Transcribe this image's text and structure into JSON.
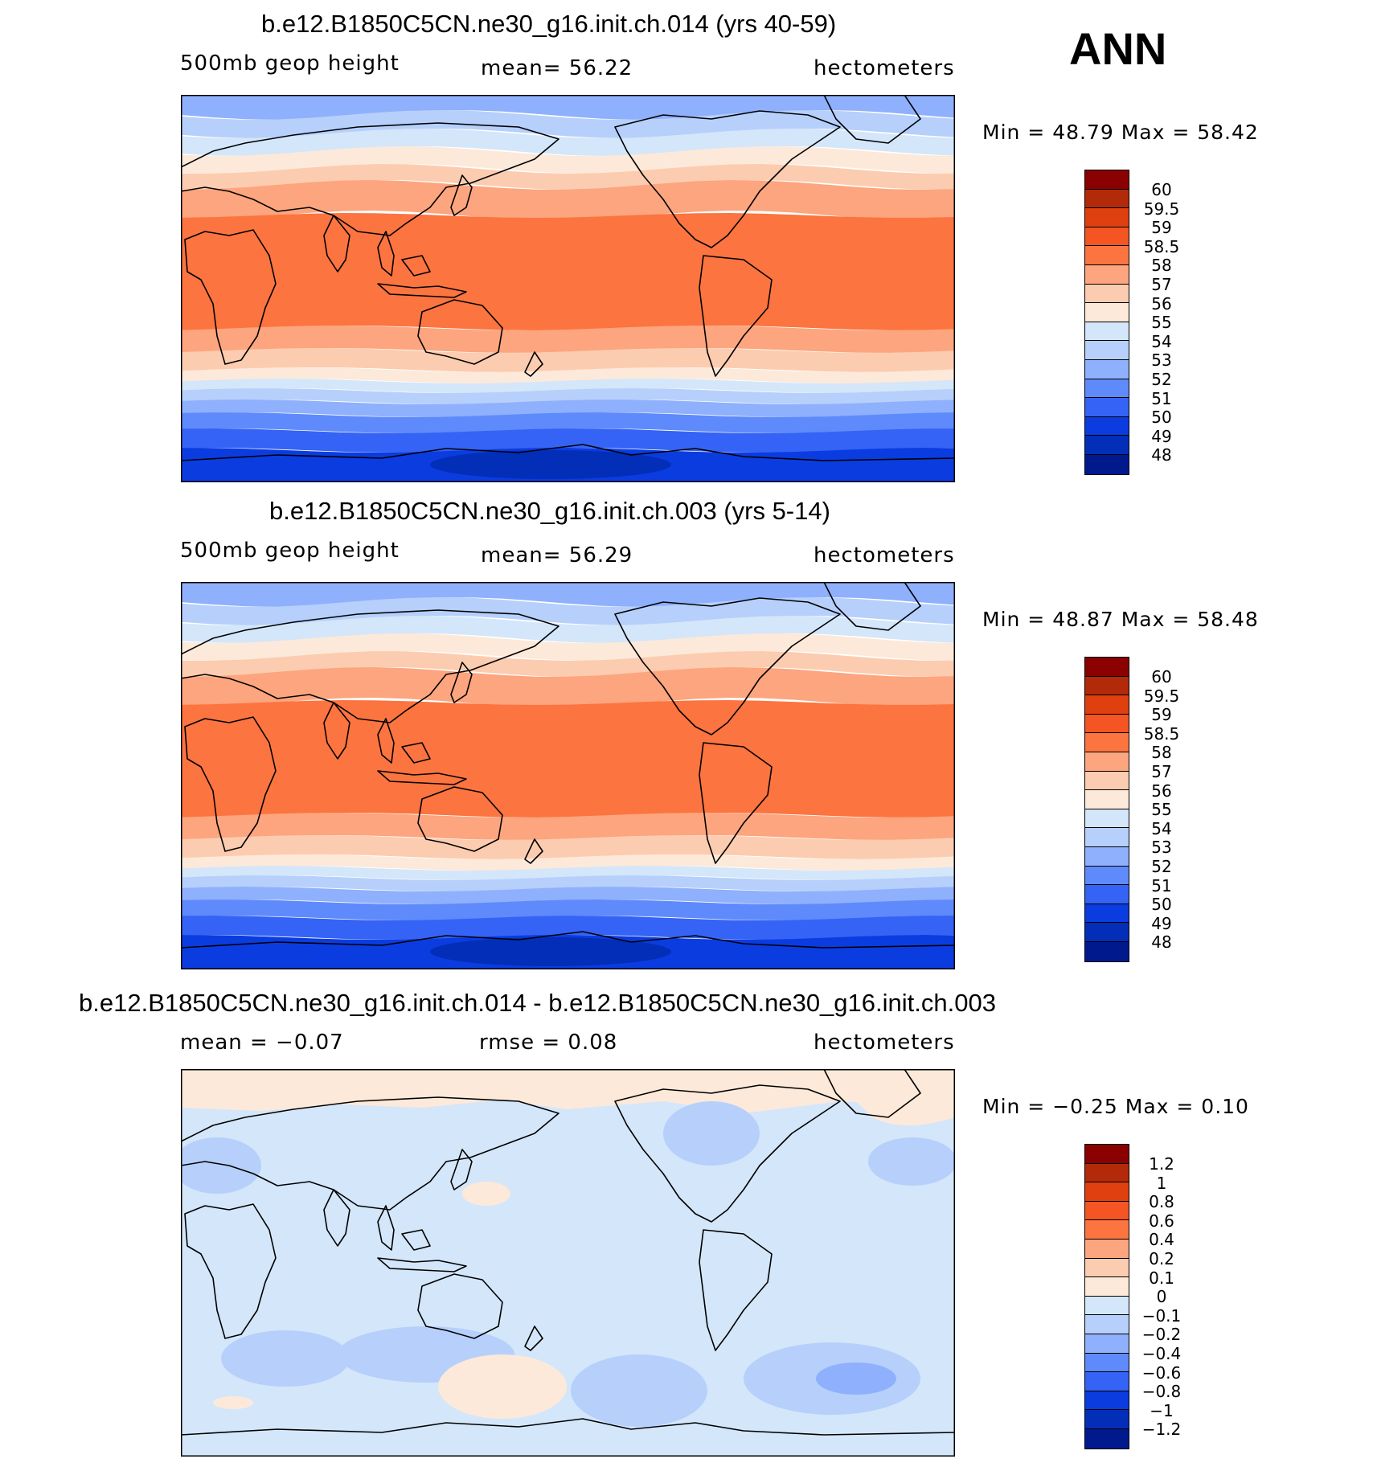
{
  "label": "ANN",
  "panels": [
    {
      "title": "b.e12.B1850C5CN.ne30_g16.init.ch.014 (yrs 40-59)",
      "left": "500mb  geop  height",
      "center": "mean=   56.22",
      "right": "hectometers",
      "minmax": "Min  =    48.79  Max  =    58.42",
      "levels": [
        "60",
        "59.5",
        "59",
        "58.5",
        "58",
        "57",
        "56",
        "55",
        "54",
        "53",
        "52",
        "51",
        "50",
        "49",
        "48"
      ],
      "colors": [
        "#8b0000",
        "#b22a0a",
        "#e0400f",
        "#f45522",
        "#fc7440",
        "#fca57e",
        "#fcccb0",
        "#fde9d9",
        "#d4e6fa",
        "#b6d0fb",
        "#8fb0fc",
        "#5f8afb",
        "#3463f5",
        "#0b3ce0",
        "#032eb8",
        "#001a8e"
      ]
    },
    {
      "title": "b.e12.B1850C5CN.ne30_g16.init.ch.003 (yrs 5-14)",
      "left": "500mb  geop  height",
      "center": "mean=   56.29",
      "right": "hectometers",
      "minmax": "Min  =    48.87  Max  =    58.48",
      "levels": [
        "60",
        "59.5",
        "59",
        "58.5",
        "58",
        "57",
        "56",
        "55",
        "54",
        "53",
        "52",
        "51",
        "50",
        "49",
        "48"
      ],
      "colors": [
        "#8b0000",
        "#b22a0a",
        "#e0400f",
        "#f45522",
        "#fc7440",
        "#fca57e",
        "#fcccb0",
        "#fde9d9",
        "#d4e6fa",
        "#b6d0fb",
        "#8fb0fc",
        "#5f8afb",
        "#3463f5",
        "#0b3ce0",
        "#032eb8",
        "#001a8e"
      ]
    },
    {
      "title": "b.e12.B1850C5CN.ne30_g16.init.ch.014 - b.e12.B1850C5CN.ne30_g16.init.ch.003",
      "left": "mean  =    −0.07",
      "center": "rmse  =     0.08",
      "right": "hectometers",
      "minmax": "Min  =   −0.25  Max  =     0.10",
      "levels": [
        "1.2",
        "1",
        "0.8",
        "0.6",
        "0.4",
        "0.2",
        "0.1",
        "0",
        "−0.1",
        "−0.2",
        "−0.4",
        "−0.6",
        "−0.8",
        "−1",
        "−1.2"
      ],
      "colors": [
        "#8b0000",
        "#b22a0a",
        "#e0400f",
        "#f45522",
        "#fc7440",
        "#fca57e",
        "#fcccb0",
        "#fde9d9",
        "#d4e6fa",
        "#b6d0fb",
        "#8fb0fc",
        "#5f8afb",
        "#3463f5",
        "#0b3ce0",
        "#032eb8",
        "#001a8e"
      ]
    }
  ],
  "map_bands": {
    "topo": [
      "#8fb0fc",
      "#b6d0fb",
      "#d4e6fa",
      "#fde9d9",
      "#fcccb0",
      "#fca57e",
      "#fc7440",
      "#fca57e",
      "#fcccb0",
      "#fde9d9",
      "#d4e6fa",
      "#b6d0fb",
      "#8fb0fc",
      "#5f8afb",
      "#3463f5",
      "#0b3ce0"
    ],
    "diff_base": "#d4e6fa",
    "diff_pos": "#fde9d9",
    "diff_neg": "#b6d0fb",
    "diff_neg2": "#8fb0fc"
  }
}
